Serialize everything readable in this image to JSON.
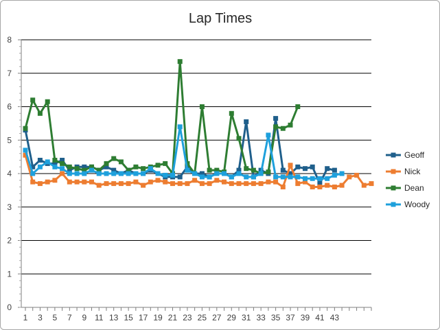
{
  "chart_data": {
    "type": "line",
    "title": "Lap Times",
    "xlabel": "",
    "ylabel": "",
    "ylim": [
      0,
      8
    ],
    "yticks": [
      0,
      1,
      2,
      3,
      4,
      5,
      6,
      7,
      8
    ],
    "x_tick_labels": [
      "1",
      "3",
      "5",
      "7",
      "9",
      "11",
      "13",
      "15",
      "17",
      "19",
      "21",
      "23",
      "25",
      "27",
      "29",
      "31",
      "33",
      "35",
      "37",
      "39",
      "41",
      "43"
    ],
    "grid": "horizontal major gridlines",
    "legend_position": "right",
    "series": [
      {
        "name": "Geoff",
        "color": "#1f5f8b",
        "values": [
          5.3,
          4.2,
          4.4,
          4.3,
          4.3,
          4.4,
          4.1,
          4.2,
          4.2,
          4.2,
          4.1,
          4.2,
          4.1,
          4.0,
          4.1,
          4.0,
          4.0,
          4.1,
          4.0,
          3.9,
          3.9,
          3.9,
          4.2,
          4.0,
          4.0,
          3.9,
          4.0,
          4.0,
          3.9,
          4.1,
          5.55,
          3.9,
          4.1,
          4.0,
          5.65,
          4.1,
          4.0,
          4.2,
          4.15,
          4.2,
          3.7,
          4.15,
          4.1
        ]
      },
      {
        "name": "Nick",
        "color": "#ed7d31",
        "values": [
          4.55,
          3.75,
          3.7,
          3.75,
          3.8,
          4.0,
          3.75,
          3.75,
          3.75,
          3.75,
          3.65,
          3.7,
          3.7,
          3.7,
          3.7,
          3.75,
          3.65,
          3.75,
          3.8,
          3.75,
          3.7,
          3.7,
          3.7,
          3.8,
          3.7,
          3.7,
          3.8,
          3.75,
          3.7,
          3.7,
          3.7,
          3.7,
          3.7,
          3.75,
          3.75,
          3.6,
          4.25,
          3.7,
          3.75,
          3.6,
          3.6,
          3.65,
          3.6,
          3.65,
          3.9,
          3.95,
          3.65,
          3.7
        ]
      },
      {
        "name": "Dean",
        "color": "#2e7d32",
        "values": [
          5.35,
          6.2,
          5.8,
          6.15,
          4.4,
          4.3,
          4.2,
          4.15,
          4.1,
          4.2,
          4.1,
          4.3,
          4.45,
          4.35,
          4.1,
          4.2,
          4.15,
          4.2,
          4.25,
          4.3,
          4.0,
          7.35,
          4.3,
          4.0,
          6.0,
          4.1,
          4.1,
          4.05,
          5.8,
          5.05,
          4.15,
          4.1,
          4.0,
          4.05,
          5.4,
          5.35,
          5.45,
          6.0
        ]
      },
      {
        "name": "Woody",
        "color": "#1ea0dc",
        "values": [
          4.7,
          4.0,
          4.2,
          4.35,
          4.2,
          4.15,
          4.0,
          4.0,
          4.0,
          4.1,
          4.0,
          4.0,
          4.0,
          4.0,
          4.0,
          4.0,
          4.0,
          4.15,
          4.0,
          3.95,
          3.95,
          5.4,
          4.1,
          4.0,
          3.9,
          3.9,
          4.0,
          4.0,
          3.9,
          4.0,
          3.9,
          3.9,
          4.0,
          5.15,
          3.9,
          3.9,
          3.9,
          3.9,
          3.85,
          3.85,
          3.85,
          3.85,
          3.95,
          4.0
        ]
      }
    ]
  }
}
